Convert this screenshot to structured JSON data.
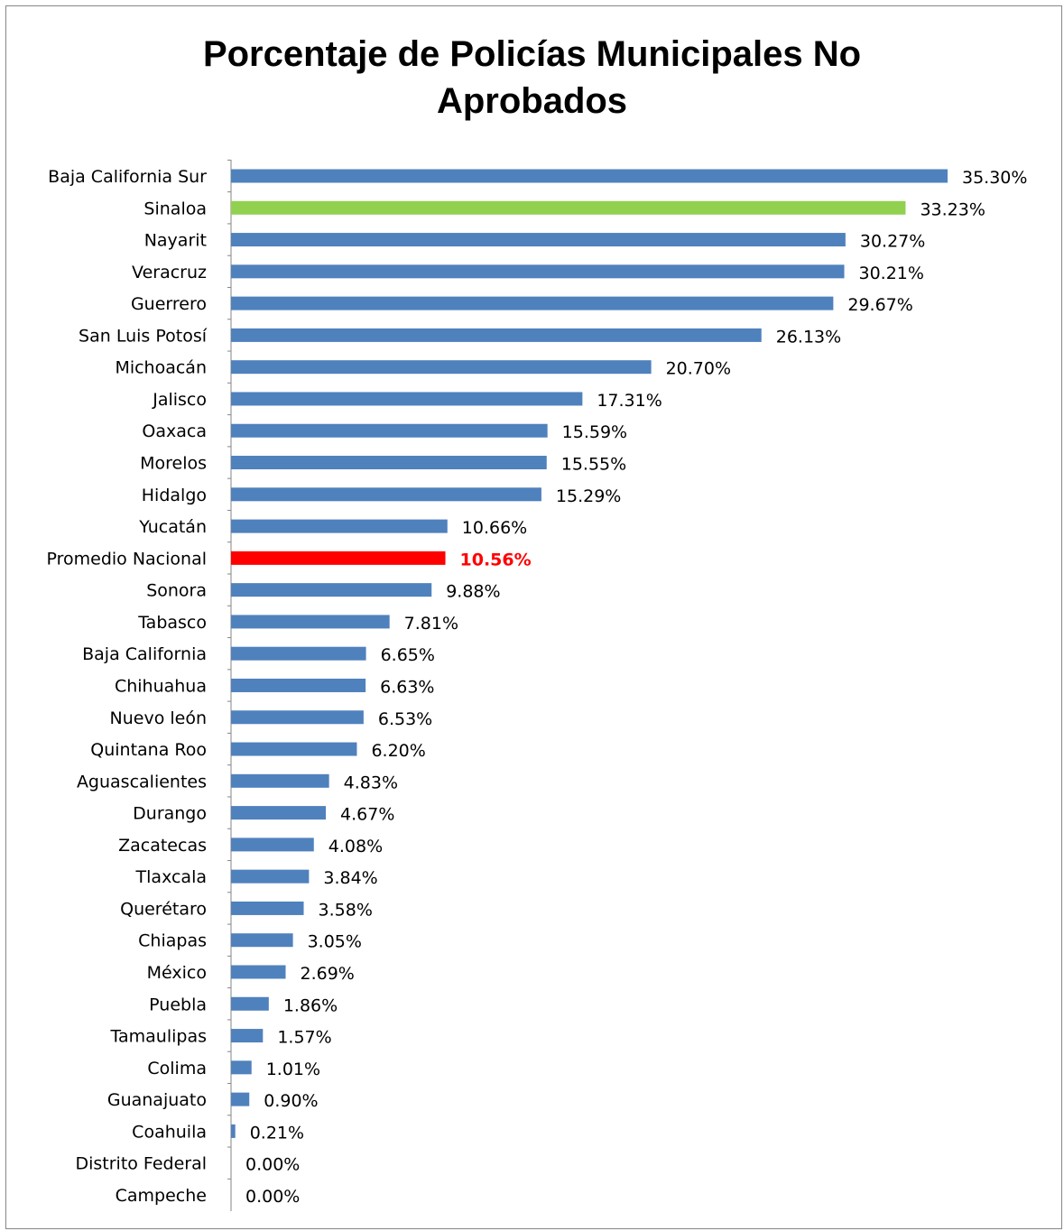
{
  "chart_data": {
    "type": "bar",
    "orientation": "horizontal",
    "title": "Porcentaje de Policías Municipales No\nAprobados",
    "xlabel": "",
    "ylabel": "",
    "xlim": [
      0,
      35.3
    ],
    "grid": false,
    "legend": "none",
    "value_format": "percent, 2 decimals",
    "colors": {
      "default": "#4F81BD",
      "Sinaloa": "#92D050",
      "Promedio Nacional": "#FF0000",
      "axis": "#868686",
      "label_highlight": "#FF0000"
    },
    "categories": [
      "Baja California Sur",
      "Sinaloa",
      "Nayarit",
      "Veracruz",
      "Guerrero",
      "San Luis Potosí",
      "Michoacán",
      "Jalisco",
      "Oaxaca ",
      "Morelos",
      "Hidalgo",
      "Yucatán",
      "Promedio Nacional",
      "Sonora",
      "Tabasco",
      "Baja California",
      "Chihuahua",
      "Nuevo león",
      "Quintana Roo",
      "Aguascalientes ",
      "Durango",
      "Zacatecas",
      "Tlaxcala ",
      "Querétaro",
      "Chiapas",
      "México",
      "Puebla",
      "Tamaulipas",
      "Colima",
      "Guanajuato",
      "Coahuila ",
      "Distrito Federal",
      "Campeche"
    ],
    "values": [
      35.3,
      33.23,
      30.27,
      30.21,
      29.67,
      26.13,
      20.7,
      17.31,
      15.59,
      15.55,
      15.29,
      10.66,
      10.56,
      9.88,
      7.81,
      6.65,
      6.63,
      6.53,
      6.2,
      4.83,
      4.67,
      4.08,
      3.84,
      3.58,
      3.05,
      2.69,
      1.86,
      1.57,
      1.01,
      0.9,
      0.21,
      0.0,
      0.0
    ],
    "data_labels": [
      "35.30%",
      "33.23%",
      "30.27%",
      "30.21%",
      "29.67%",
      "26.13%",
      "20.70%",
      "17.31%",
      "15.59%",
      "15.55%",
      "15.29%",
      "10.66%",
      "10.56%",
      "9.88%",
      "7.81%",
      "6.65%",
      "6.63%",
      "6.53%",
      "6.20%",
      "4.83%",
      "4.67%",
      "4.08%",
      "3.84%",
      "3.58%",
      "3.05%",
      "2.69%",
      "1.86%",
      "1.57%",
      "1.01%",
      "0.90%",
      "0.21%",
      "0.00%",
      "0.00%"
    ]
  }
}
